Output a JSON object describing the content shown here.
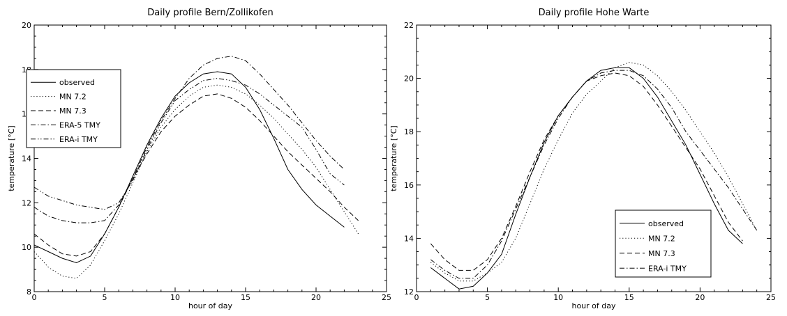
{
  "chart_data": [
    {
      "type": "line",
      "title": "Daily profile Bern/Zollikofen",
      "xlabel": "hour of day",
      "ylabel": "temperature [°C]",
      "xlim": [
        0,
        25
      ],
      "ylim": [
        8,
        20
      ],
      "xticks": [
        "0",
        "5",
        "10",
        "15",
        "20",
        "25"
      ],
      "yticks": [
        "8",
        "10",
        "12",
        "14",
        "16",
        "18",
        "20"
      ],
      "legend_position": "upper-left",
      "series": [
        {
          "name": "observed",
          "style": "solid",
          "x": [
            0,
            1,
            2,
            3,
            4,
            5,
            6,
            7,
            8,
            9,
            10,
            11,
            12,
            13,
            14,
            15,
            16,
            17,
            18,
            19,
            20,
            21,
            22
          ],
          "y": [
            10.1,
            9.8,
            9.5,
            9.3,
            9.6,
            10.6,
            11.8,
            13.2,
            14.6,
            15.8,
            16.8,
            17.4,
            17.8,
            17.9,
            17.8,
            17.2,
            16.2,
            14.9,
            13.5,
            12.6,
            11.9,
            11.4,
            10.9
          ]
        },
        {
          "name": "MN 7.2",
          "style": "dotted",
          "x": [
            0,
            1,
            2,
            3,
            4,
            5,
            6,
            7,
            8,
            9,
            10,
            11,
            12,
            13,
            14,
            15,
            16,
            17,
            18,
            19,
            20,
            21,
            22,
            23
          ],
          "y": [
            9.8,
            9.1,
            8.7,
            8.6,
            9.2,
            10.3,
            11.5,
            12.9,
            14.3,
            15.4,
            16.2,
            16.8,
            17.2,
            17.3,
            17.2,
            16.9,
            16.4,
            15.8,
            15.1,
            14.4,
            13.6,
            12.6,
            11.6,
            10.6
          ]
        },
        {
          "name": "MN 7.3",
          "style": "dashed",
          "x": [
            0,
            1,
            2,
            3,
            4,
            5,
            6,
            7,
            8,
            9,
            10,
            11,
            12,
            13,
            14,
            15,
            16,
            17,
            18,
            19,
            20,
            21,
            22,
            23
          ],
          "y": [
            10.6,
            10.1,
            9.7,
            9.6,
            9.8,
            10.6,
            11.8,
            13.1,
            14.2,
            15.2,
            15.9,
            16.4,
            16.8,
            16.9,
            16.7,
            16.3,
            15.7,
            15.0,
            14.3,
            13.7,
            13.1,
            12.5,
            11.8,
            11.2
          ]
        },
        {
          "name": "ERA-5 TMY",
          "style": "dashdot",
          "x": [
            0,
            1,
            2,
            3,
            4,
            5,
            6,
            7,
            8,
            9,
            10,
            11,
            12,
            13,
            14,
            15,
            16,
            17,
            18,
            19,
            20,
            21,
            22
          ],
          "y": [
            11.8,
            11.4,
            11.2,
            11.1,
            11.1,
            11.2,
            11.9,
            13.1,
            14.5,
            15.7,
            16.7,
            17.6,
            18.2,
            18.5,
            18.6,
            18.4,
            17.8,
            17.1,
            16.4,
            15.6,
            14.8,
            14.1,
            13.5
          ]
        },
        {
          "name": "ERA-i TMY",
          "style": "dashdotdot",
          "x": [
            0,
            1,
            2,
            3,
            4,
            5,
            6,
            7,
            8,
            9,
            10,
            11,
            12,
            13,
            14,
            15,
            16,
            17,
            18,
            19,
            20,
            21,
            22
          ],
          "y": [
            12.7,
            12.3,
            12.1,
            11.9,
            11.8,
            11.7,
            12.0,
            13.0,
            14.4,
            15.6,
            16.6,
            17.1,
            17.5,
            17.6,
            17.5,
            17.3,
            16.9,
            16.4,
            15.9,
            15.4,
            14.4,
            13.3,
            12.8
          ]
        }
      ]
    },
    {
      "type": "line",
      "title": "Daily profile Hohe Warte",
      "xlabel": "hour of day",
      "ylabel": "temperature [°C]",
      "xlim": [
        0,
        25
      ],
      "ylim": [
        12,
        22
      ],
      "xticks": [
        "0",
        "5",
        "10",
        "15",
        "20",
        "25"
      ],
      "yticks": [
        "12",
        "14",
        "16",
        "18",
        "20",
        "22"
      ],
      "legend_position": "lower-right",
      "series": [
        {
          "name": "observed",
          "style": "solid",
          "x": [
            1,
            2,
            3,
            4,
            5,
            6,
            7,
            8,
            9,
            10,
            11,
            12,
            13,
            14,
            15,
            16,
            17,
            18,
            19,
            20,
            21,
            22,
            23
          ],
          "y": [
            12.9,
            12.5,
            12.1,
            12.2,
            12.7,
            13.4,
            14.9,
            16.3,
            17.6,
            18.6,
            19.3,
            19.9,
            20.3,
            20.4,
            20.4,
            20.0,
            19.3,
            18.4,
            17.5,
            16.4,
            15.3,
            14.3,
            13.8
          ]
        },
        {
          "name": "MN 7.2",
          "style": "dotted",
          "x": [
            1,
            2,
            3,
            4,
            5,
            6,
            7,
            8,
            9,
            10,
            11,
            12,
            13,
            14,
            15,
            16,
            17,
            18,
            19,
            20,
            21,
            22,
            23,
            24
          ],
          "y": [
            13.1,
            12.7,
            12.4,
            12.4,
            12.7,
            13.1,
            14.0,
            15.3,
            16.6,
            17.7,
            18.7,
            19.4,
            19.9,
            20.4,
            20.6,
            20.5,
            20.1,
            19.5,
            18.8,
            18.0,
            17.2,
            16.3,
            15.3,
            14.3
          ]
        },
        {
          "name": "MN 7.3",
          "style": "dashed",
          "x": [
            1,
            2,
            3,
            4,
            5,
            6,
            7,
            8,
            9,
            10,
            11,
            12,
            13,
            14,
            15,
            16,
            17,
            18,
            19,
            20,
            21,
            22,
            23
          ],
          "y": [
            13.8,
            13.2,
            12.8,
            12.8,
            13.2,
            14.0,
            15.2,
            16.5,
            17.7,
            18.6,
            19.3,
            19.9,
            20.1,
            20.2,
            20.1,
            19.7,
            19.0,
            18.2,
            17.4,
            16.6,
            15.6,
            14.6,
            13.9
          ]
        },
        {
          "name": "ERA-i TMY",
          "style": "dashdot",
          "x": [
            1,
            2,
            3,
            4,
            5,
            6,
            7,
            8,
            9,
            10,
            11,
            12,
            13,
            14,
            15,
            16,
            17,
            18,
            19,
            20,
            21,
            22,
            23,
            24
          ],
          "y": [
            13.2,
            12.8,
            12.5,
            12.5,
            13.0,
            13.9,
            15.1,
            16.3,
            17.5,
            18.5,
            19.3,
            19.9,
            20.2,
            20.3,
            20.3,
            20.1,
            19.6,
            18.9,
            18.0,
            17.3,
            16.6,
            15.9,
            15.1,
            14.3
          ]
        }
      ]
    }
  ]
}
